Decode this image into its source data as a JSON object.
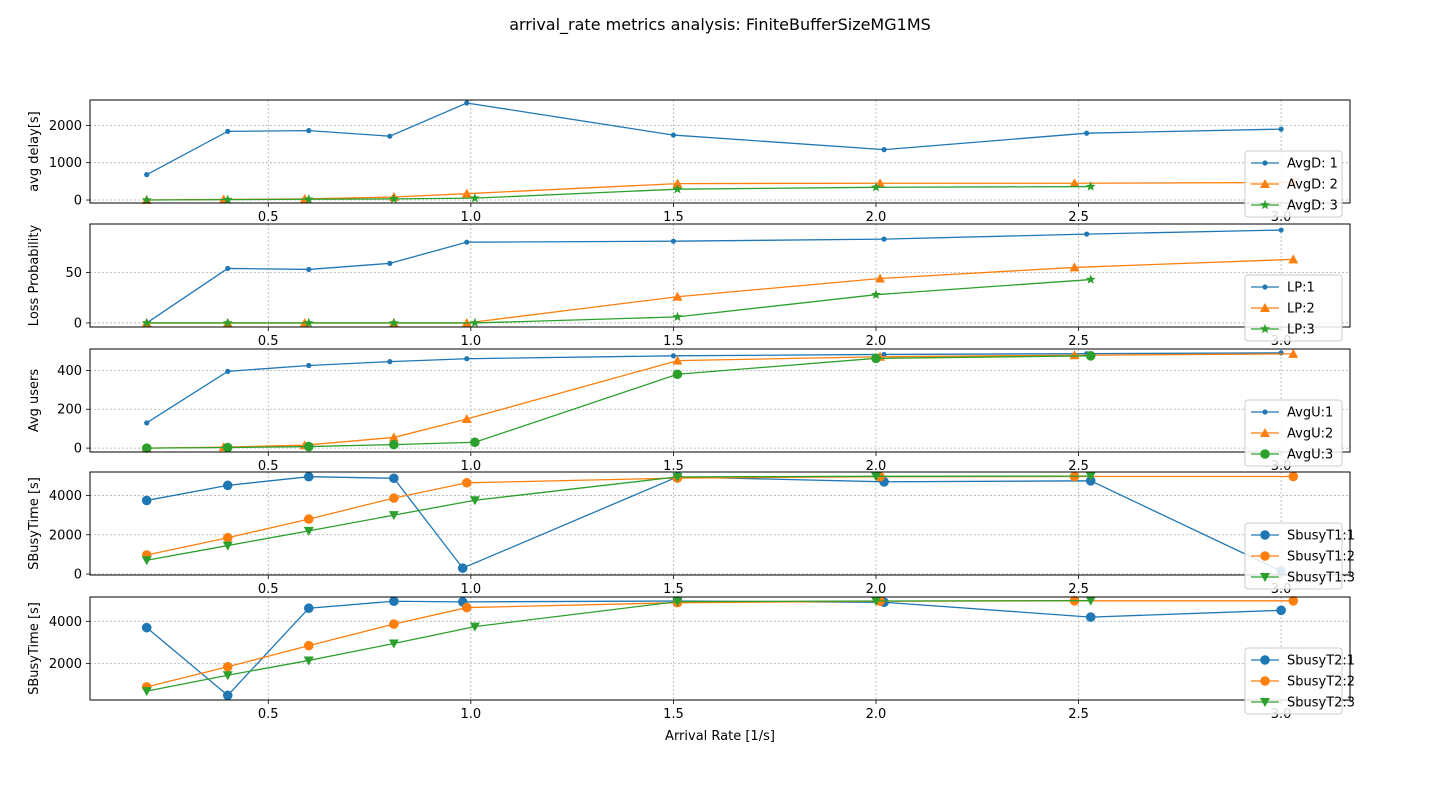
{
  "figure": {
    "title": "arrival_rate metrics analysis: FiniteBufferSizeMG1MS",
    "xlabel": "Arrival Rate [1/s]"
  },
  "colors": {
    "c1": "#1f77b4",
    "c2": "#ff7f0e",
    "c3": "#2ca02c",
    "grid": "#b0b0b0",
    "text": "#000000"
  },
  "chart_data": [
    {
      "type": "line",
      "ylabel": "avg delay[s]",
      "legend_position": "lower-right",
      "grid": true,
      "xlim": [
        0.06,
        3.17
      ],
      "xticks": [
        0.5,
        1.0,
        1.5,
        2.0,
        2.5,
        3.0
      ],
      "ylim": [
        -80,
        2680
      ],
      "yticks": [
        0,
        1000,
        2000
      ],
      "series": [
        {
          "name": "AvgD: 1",
          "marker": "dot",
          "x": [
            0.2,
            0.4,
            0.6,
            0.8,
            0.99,
            1.5,
            2.02,
            2.52,
            3.0
          ],
          "y": [
            680,
            1840,
            1860,
            1710,
            2600,
            1740,
            1350,
            1790,
            1900
          ]
        },
        {
          "name": "AvgD: 2",
          "marker": "triangle-up",
          "x": [
            0.2,
            0.39,
            0.59,
            0.81,
            0.99,
            1.51,
            2.01,
            2.49,
            3.03
          ],
          "y": [
            0,
            15,
            30,
            80,
            170,
            440,
            450,
            450,
            470
          ]
        },
        {
          "name": "AvgD: 3",
          "marker": "star",
          "x": [
            0.2,
            0.4,
            0.6,
            0.81,
            1.01,
            1.51,
            2.0,
            2.53
          ],
          "y": [
            0,
            10,
            20,
            30,
            50,
            290,
            340,
            360
          ]
        }
      ]
    },
    {
      "type": "line",
      "ylabel": "Loss Probability",
      "legend_position": "lower-right",
      "grid": true,
      "xlim": [
        0.06,
        3.17
      ],
      "xticks": [
        0.5,
        1.0,
        1.5,
        2.0,
        2.5,
        3.0
      ],
      "ylim": [
        -4,
        98
      ],
      "yticks": [
        0,
        50
      ],
      "series": [
        {
          "name": "LP:1",
          "marker": "dot",
          "x": [
            0.2,
            0.4,
            0.6,
            0.8,
            0.99,
            1.5,
            2.02,
            2.52,
            3.0
          ],
          "y": [
            0,
            54,
            53,
            59,
            80,
            81,
            83,
            88,
            92
          ]
        },
        {
          "name": "LP:2",
          "marker": "triangle-up",
          "x": [
            0.2,
            0.4,
            0.59,
            0.81,
            0.99,
            1.51,
            2.01,
            2.49,
            3.03
          ],
          "y": [
            0,
            0,
            0,
            0,
            0,
            26,
            44,
            55,
            63
          ]
        },
        {
          "name": "LP:3",
          "marker": "star",
          "x": [
            0.2,
            0.4,
            0.6,
            0.81,
            1.01,
            1.51,
            2.0,
            2.53
          ],
          "y": [
            0,
            0,
            0,
            0,
            0,
            6,
            28,
            43
          ]
        }
      ]
    },
    {
      "type": "line",
      "ylabel": "Avg users",
      "legend_position": "lower-right",
      "grid": true,
      "xlim": [
        0.06,
        3.17
      ],
      "xticks": [
        0.5,
        1.0,
        1.5,
        2.0,
        2.5,
        3.0
      ],
      "ylim": [
        -20,
        510
      ],
      "yticks": [
        0,
        200,
        400
      ],
      "series": [
        {
          "name": "AvgU:1",
          "marker": "dot",
          "x": [
            0.2,
            0.4,
            0.6,
            0.8,
            0.99,
            1.5,
            2.02,
            2.52,
            3.0
          ],
          "y": [
            130,
            395,
            425,
            445,
            460,
            475,
            482,
            486,
            490
          ]
        },
        {
          "name": "AvgU:2",
          "marker": "triangle-up",
          "x": [
            0.2,
            0.39,
            0.59,
            0.81,
            0.99,
            1.51,
            2.01,
            2.49,
            3.03
          ],
          "y": [
            0,
            5,
            15,
            55,
            150,
            450,
            470,
            478,
            485
          ]
        },
        {
          "name": "AvgU:3",
          "marker": "circle",
          "x": [
            0.2,
            0.4,
            0.6,
            0.81,
            1.01,
            1.51,
            2.0,
            2.53
          ],
          "y": [
            0,
            3,
            8,
            18,
            30,
            380,
            462,
            475
          ]
        }
      ]
    },
    {
      "type": "line",
      "ylabel": "SBusyTime [s]",
      "legend_position": "lower-right",
      "grid": true,
      "xlim": [
        0.06,
        3.17
      ],
      "xticks": [
        0.5,
        1.0,
        1.5,
        2.0,
        2.5,
        3.0
      ],
      "ylim": [
        -50,
        5200
      ],
      "yticks": [
        0,
        2000,
        4000
      ],
      "series": [
        {
          "name": "SbusyT1:1",
          "marker": "circle",
          "x": [
            0.2,
            0.4,
            0.6,
            0.81,
            0.98,
            1.51,
            2.02,
            2.53,
            3.0
          ],
          "y": [
            3750,
            4520,
            4960,
            4880,
            300,
            4950,
            4700,
            4750,
            150
          ]
        },
        {
          "name": "SbusyT1:2",
          "marker": "circle",
          "x": [
            0.2,
            0.4,
            0.6,
            0.81,
            0.99,
            1.51,
            2.01,
            2.49,
            3.03
          ],
          "y": [
            970,
            1850,
            2800,
            3870,
            4650,
            4890,
            4960,
            4970,
            4970
          ]
        },
        {
          "name": "SbusyT1:3",
          "marker": "triangle-down",
          "x": [
            0.2,
            0.4,
            0.6,
            0.81,
            1.01,
            1.51,
            2.0,
            2.53
          ],
          "y": [
            700,
            1450,
            2200,
            3000,
            3760,
            4950,
            4980,
            4990
          ]
        }
      ]
    },
    {
      "type": "line",
      "ylabel": "SBusyTime [s]",
      "legend_position": "lower-right",
      "grid": true,
      "xlim": [
        0.06,
        3.17
      ],
      "xticks": [
        0.5,
        1.0,
        1.5,
        2.0,
        2.5,
        3.0
      ],
      "ylim": [
        280,
        5150
      ],
      "yticks": [
        2000,
        4000
      ],
      "series": [
        {
          "name": "SbusyT2:1",
          "marker": "circle",
          "x": [
            0.2,
            0.4,
            0.6,
            0.81,
            0.98,
            1.51,
            2.02,
            2.53,
            3.0
          ],
          "y": [
            3700,
            500,
            4620,
            4950,
            4920,
            4960,
            4900,
            4200,
            4520
          ]
        },
        {
          "name": "SbusyT2:2",
          "marker": "circle",
          "x": [
            0.2,
            0.4,
            0.6,
            0.81,
            0.99,
            1.51,
            2.01,
            2.49,
            3.03
          ],
          "y": [
            900,
            1850,
            2850,
            3870,
            4650,
            4880,
            4950,
            4970,
            4970
          ]
        },
        {
          "name": "SbusyT2:3",
          "marker": "triangle-down",
          "x": [
            0.2,
            0.4,
            0.6,
            0.81,
            1.01,
            1.51,
            2.0,
            2.53
          ],
          "y": [
            700,
            1450,
            2150,
            2950,
            3750,
            4930,
            4960,
            4980
          ]
        }
      ]
    }
  ]
}
